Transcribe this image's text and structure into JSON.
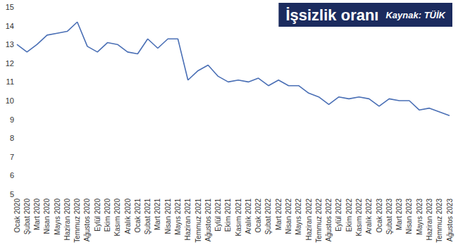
{
  "chart_data": {
    "type": "line",
    "title": "İşsizlik oranı",
    "subtitle": "Kaynak: TÜİK",
    "categories": [
      "Ocak 2020",
      "Şubat 2020",
      "Mart 2020",
      "Nisan 2020",
      "Mayıs 2020",
      "Haziran 2020",
      "Temmuz 2020",
      "Ağustos 2020",
      "Eylül 2020",
      "Ekim 2020",
      "Kasım 2020",
      "Aralık 2020",
      "Ocak 2021",
      "Şubat 2021",
      "Mart 2021",
      "Nisan 2021",
      "Mayıs 2021",
      "Haziran 2021",
      "Temmuz 2021",
      "Ağustos 2021",
      "Eylül 2021",
      "Ekim 2021",
      "Kasım 2021",
      "Aralık 2021",
      "Ocak 2022",
      "Şubat 2022",
      "Mart 2022",
      "Nisan 2022",
      "Mayıs 2022",
      "Haziran 2022",
      "Temmuz 2022",
      "Ağustos 2022",
      "Eylül 2022",
      "Ekim 2022",
      "Kasım 2022",
      "Aralık 2022",
      "Ocak 2023",
      "Şubat 2023",
      "Mart 2023",
      "Nisan 2023",
      "Mayıs 2023",
      "Haziran 2023",
      "Temmuz 2023",
      "Ağustos 2023"
    ],
    "values": [
      13.0,
      12.6,
      13.0,
      13.5,
      13.6,
      13.7,
      14.2,
      12.9,
      12.6,
      13.1,
      13.0,
      12.6,
      12.5,
      13.3,
      12.8,
      13.3,
      13.3,
      11.1,
      11.6,
      11.9,
      11.3,
      11.0,
      11.1,
      11.0,
      11.2,
      10.8,
      11.1,
      10.8,
      10.8,
      10.4,
      10.2,
      9.8,
      10.2,
      10.1,
      10.2,
      10.1,
      9.7,
      10.1,
      10.0,
      10.0,
      9.5,
      9.6,
      9.4,
      9.2
    ],
    "color": "#4a6fb5",
    "ylim": [
      5,
      15
    ],
    "yticks": [
      5,
      6,
      7,
      8,
      9,
      10,
      11,
      12,
      13,
      14,
      15
    ],
    "grid": false,
    "marker": "none",
    "line_style": "solid"
  }
}
